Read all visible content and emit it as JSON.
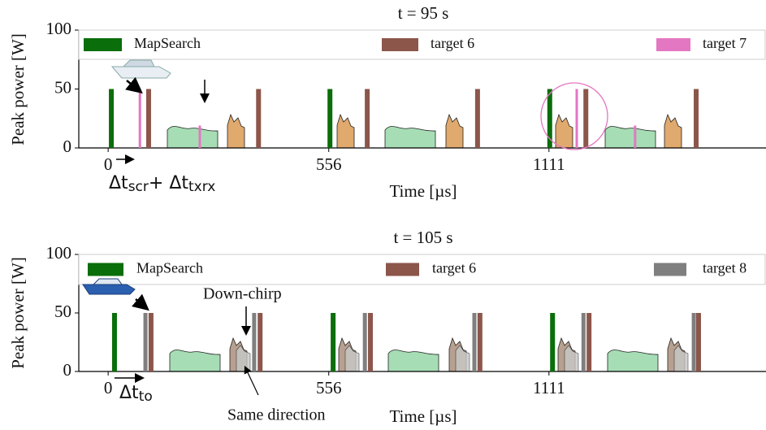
{
  "chart_data": [
    {
      "type": "bar",
      "title": "t = 95 s",
      "xlabel": "Time [µs]",
      "ylabel": "Peak power [W]",
      "xlim": [
        -74,
        1658
      ],
      "xticks": [
        0,
        556,
        1111
      ],
      "ylim": [
        0,
        100
      ],
      "yticks": [
        0,
        50,
        100
      ],
      "legend": "top",
      "series": [
        {
          "name": "MapSearch",
          "color": "#0a6e0a",
          "x": [
            8,
            559,
            1113
          ],
          "values": [
            50,
            50,
            50
          ]
        },
        {
          "name": "target 6",
          "color": "#8c564b",
          "x": [
            102,
            379,
            653,
            931,
            1204,
            1482
          ],
          "values": [
            50,
            50,
            50,
            50,
            50,
            50
          ]
        },
        {
          "name": "target 7",
          "color": "#e377c2",
          "x": [
            80,
            231,
            1181,
            1328
          ],
          "values": [
            50,
            19,
            50,
            19
          ]
        }
      ],
      "annotation_parts": [
        "Δt",
        "scr",
        "+ Δt",
        "txrx"
      ]
    },
    {
      "type": "bar",
      "title": "t = 105 s",
      "xlabel": "Time [µs]",
      "ylabel": "Peak power [W]",
      "xlim": [
        -74,
        1658
      ],
      "xticks": [
        0,
        556,
        1111
      ],
      "ylim": [
        0,
        100
      ],
      "yticks": [
        0,
        50,
        100
      ],
      "legend": "top",
      "series": [
        {
          "name": "MapSearch",
          "color": "#0a6e0a",
          "x": [
            16,
            567,
            1120
          ],
          "values": [
            50,
            50,
            50
          ]
        },
        {
          "name": "target 6",
          "color": "#8c564b",
          "x": [
            108,
            383,
            661,
            937,
            1212,
            1488
          ],
          "values": [
            50,
            50,
            50,
            50,
            50,
            50
          ]
        },
        {
          "name": "target 8",
          "color": "#7f7f7f",
          "x": [
            94,
            368,
            647,
            923,
            1198,
            1476
          ],
          "values": [
            50,
            50,
            50,
            50,
            50,
            50
          ]
        }
      ],
      "annotation_parts": [
        "Δt",
        "to"
      ],
      "annotations": [
        "Down-chirp",
        "Same direction"
      ]
    }
  ]
}
